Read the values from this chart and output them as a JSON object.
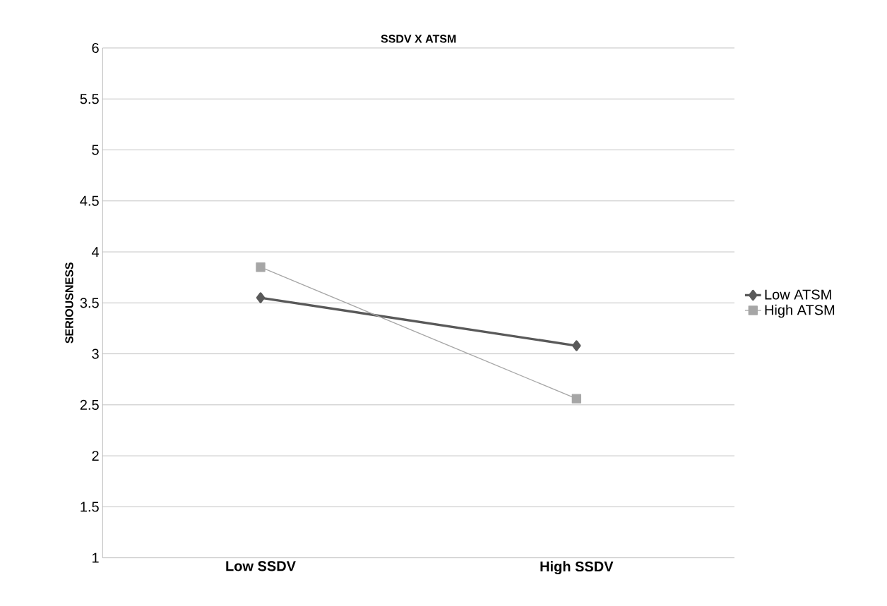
{
  "chart_data": {
    "type": "line",
    "title": "SSDV X ATSM",
    "ylabel": "SERIOUSNESS",
    "categories": [
      "Low SSDV",
      "High SSDV"
    ],
    "series": [
      {
        "name": "Low ATSM",
        "color": "#595959",
        "marker": "diamond",
        "values": [
          3.55,
          3.08
        ]
      },
      {
        "name": "High ATSM",
        "color": "#a6a6a6",
        "marker": "square",
        "values": [
          3.85,
          2.56
        ]
      }
    ],
    "ylim": [
      1,
      6
    ],
    "yticks": [
      1,
      1.5,
      2,
      2.5,
      3,
      3.5,
      4,
      4.5,
      5,
      5.5,
      6
    ],
    "grid": "y",
    "legend": "right"
  }
}
